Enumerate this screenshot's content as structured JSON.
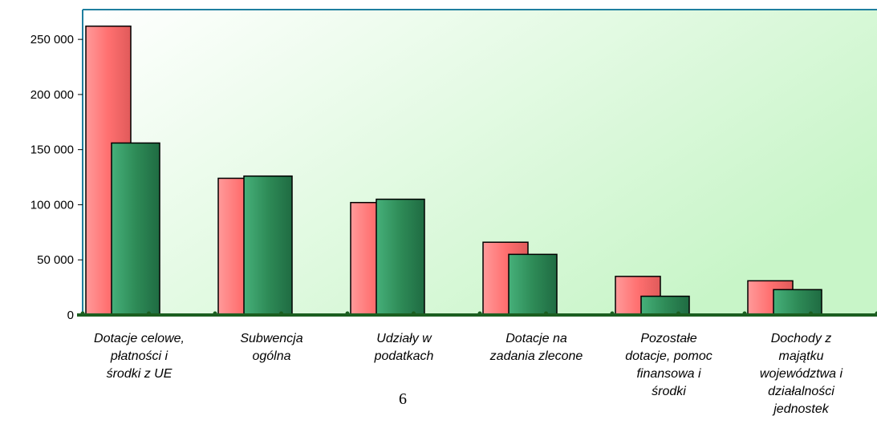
{
  "chart_data": {
    "type": "bar",
    "categories": [
      "Dotacje celowe, płatności i środki z UE",
      "Subwencja ogólna",
      "Udziały w podatkach",
      "Dotacje na zadania zlecone",
      "Pozostałe dotacje, pomoc finansowa i środki",
      "Dochody z majątku województwa i działalności jednostek"
    ],
    "category_lines": [
      [
        "Dotacje celowe,",
        "płatności i",
        "środki z UE"
      ],
      [
        "Subwencja",
        "ogólna"
      ],
      [
        "Udziały w",
        "podatkach"
      ],
      [
        "Dotacje na",
        "zadania zlecone"
      ],
      [
        "Pozostałe",
        "dotacje, pomoc",
        "finansowa i",
        "środki"
      ],
      [
        "Dochody z",
        "majątku",
        "województwa i",
        "działalności",
        "jednostek"
      ]
    ],
    "series": [
      {
        "values": [
          262000,
          124000,
          102000,
          66000,
          35000,
          31000
        ],
        "color": "#ff8080"
      },
      {
        "values": [
          156000,
          126000,
          105000,
          55000,
          17000,
          23000
        ],
        "color": "#2e8b57"
      }
    ],
    "yticks": [
      "0",
      "50 000",
      "100 000",
      "150 000",
      "200 000",
      "250 000"
    ],
    "ylim": [
      0,
      277000
    ],
    "grid": false,
    "background": "gradient white to light green"
  },
  "page_number": "6"
}
